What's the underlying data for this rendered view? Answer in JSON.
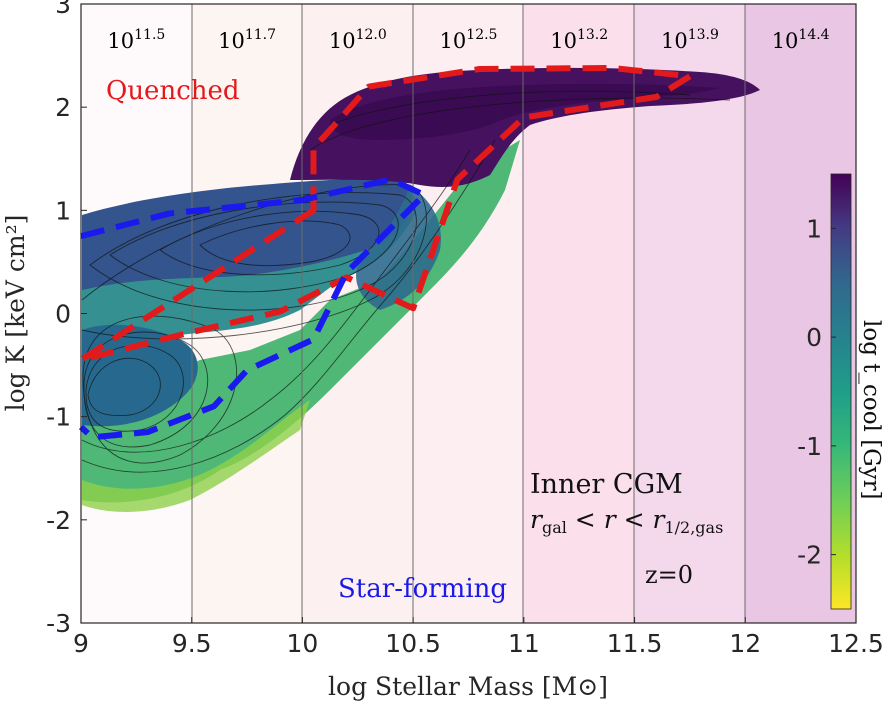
{
  "chart_data": {
    "type": "heatmap",
    "title": "",
    "xlabel": "log Stellar Mass [M⊙]",
    "ylabel": "log K [keV cm²]",
    "xlim": [
      9,
      12.5
    ],
    "ylim": [
      -3,
      3
    ],
    "xticks": [
      "9",
      "9.5",
      "10",
      "10.5",
      "11",
      "11.5",
      "12",
      "12.5"
    ],
    "xtick_values": [
      9,
      9.5,
      10,
      10.5,
      11,
      11.5,
      12,
      12.5
    ],
    "yticks": [
      "3",
      "2",
      "1",
      "0",
      "-1",
      "-2",
      "-3"
    ],
    "ytick_values": [
      3,
      2,
      1,
      0,
      -1,
      -2,
      -3
    ],
    "colorbar": {
      "label": "log t_cool [Gyr]",
      "range": [
        -2.5,
        1.5
      ],
      "ticks": [
        "1",
        "0",
        "-1",
        "-2"
      ],
      "tick_values": [
        1,
        0,
        -1,
        -2
      ],
      "colormap": "viridis"
    },
    "halo_mass_bins": {
      "boundaries": [
        9.5,
        10,
        10.5,
        11,
        11.5,
        12
      ],
      "labels": [
        {
          "base": "10",
          "exp": "11.5"
        },
        {
          "base": "10",
          "exp": "11.7"
        },
        {
          "base": "10",
          "exp": "12.0"
        },
        {
          "base": "10",
          "exp": "12.5"
        },
        {
          "base": "10",
          "exp": "13.2"
        },
        {
          "base": "10",
          "exp": "13.9"
        },
        {
          "base": "10",
          "exp": "14.4"
        }
      ]
    },
    "annotations": {
      "quenched": "Quenched",
      "star_forming": "Star-forming",
      "region_line1": "Inner CGM",
      "region_r": "r",
      "region_gal_sub": "gal",
      "region_lt": " < ",
      "region_r_mid": "r",
      "region_rhalf_sub": "1/2,gas",
      "redshift": "z=0"
    },
    "series": [
      {
        "name": "Quenched",
        "color": "#e31a1c",
        "style": "dashed",
        "points": [
          [
            10.05,
            1.0
          ],
          [
            10.05,
            1.6
          ],
          [
            10.3,
            2.2
          ],
          [
            10.8,
            2.37
          ],
          [
            11.4,
            2.38
          ],
          [
            11.75,
            2.3
          ],
          [
            11.6,
            2.1
          ],
          [
            11.0,
            1.9
          ],
          [
            10.7,
            1.3
          ],
          [
            10.5,
            0.05
          ],
          [
            10.2,
            0.35
          ],
          [
            9.9,
            0.02
          ],
          [
            9.5,
            -0.18
          ],
          [
            9.0,
            -0.45
          ]
        ]
      },
      {
        "name": "Star-forming",
        "color": "#1a1aee",
        "style": "dashed",
        "points": [
          [
            9.0,
            0.75
          ],
          [
            9.4,
            0.97
          ],
          [
            10.0,
            1.1
          ],
          [
            10.4,
            1.3
          ],
          [
            10.55,
            1.15
          ],
          [
            10.2,
            0.4
          ],
          [
            10.05,
            -0.25
          ],
          [
            9.75,
            -0.55
          ],
          [
            9.6,
            -0.9
          ],
          [
            9.3,
            -1.15
          ],
          [
            9.05,
            -1.2
          ],
          [
            9.0,
            -1.1
          ]
        ]
      }
    ]
  }
}
